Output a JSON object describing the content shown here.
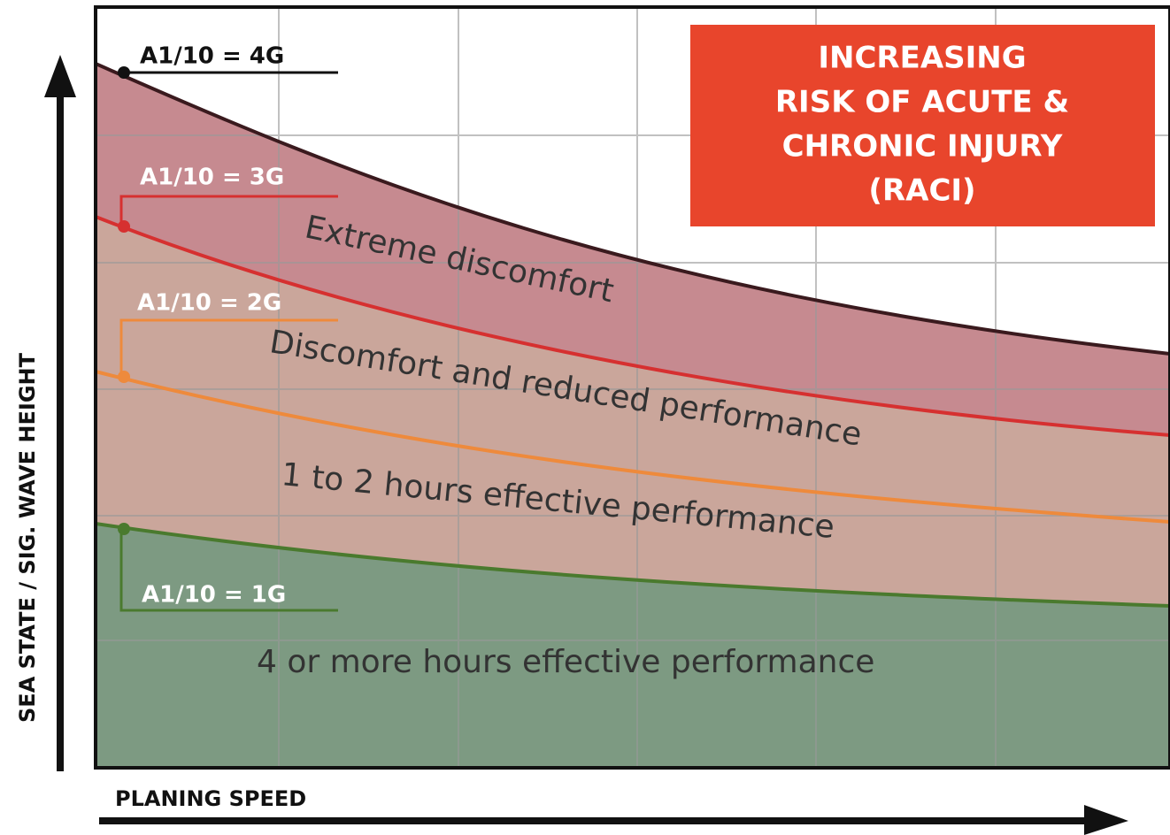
{
  "diagram": {
    "thresholds": [
      {
        "label": "A1/10 = 4G"
      },
      {
        "label": "A1/10 = 3G"
      },
      {
        "label": "A1/10 = 2G"
      },
      {
        "label": "A1/10 = 1G"
      }
    ],
    "zones": [
      {
        "label": "Extreme discomfort"
      },
      {
        "label": "Discomfort and reduced performance"
      },
      {
        "label": "1 to 2 hours effective performance"
      },
      {
        "label": "4 or more hours effective performance"
      }
    ],
    "callout": {
      "lines": [
        "INCREASING",
        "RISK OF ACUTE &",
        "CHRONIC INJURY",
        "(RACI)"
      ]
    },
    "y_axis_label": "SEA STATE / SIG. WAVE HEIGHT",
    "x_axis_label": "PLANING SPEED"
  }
}
